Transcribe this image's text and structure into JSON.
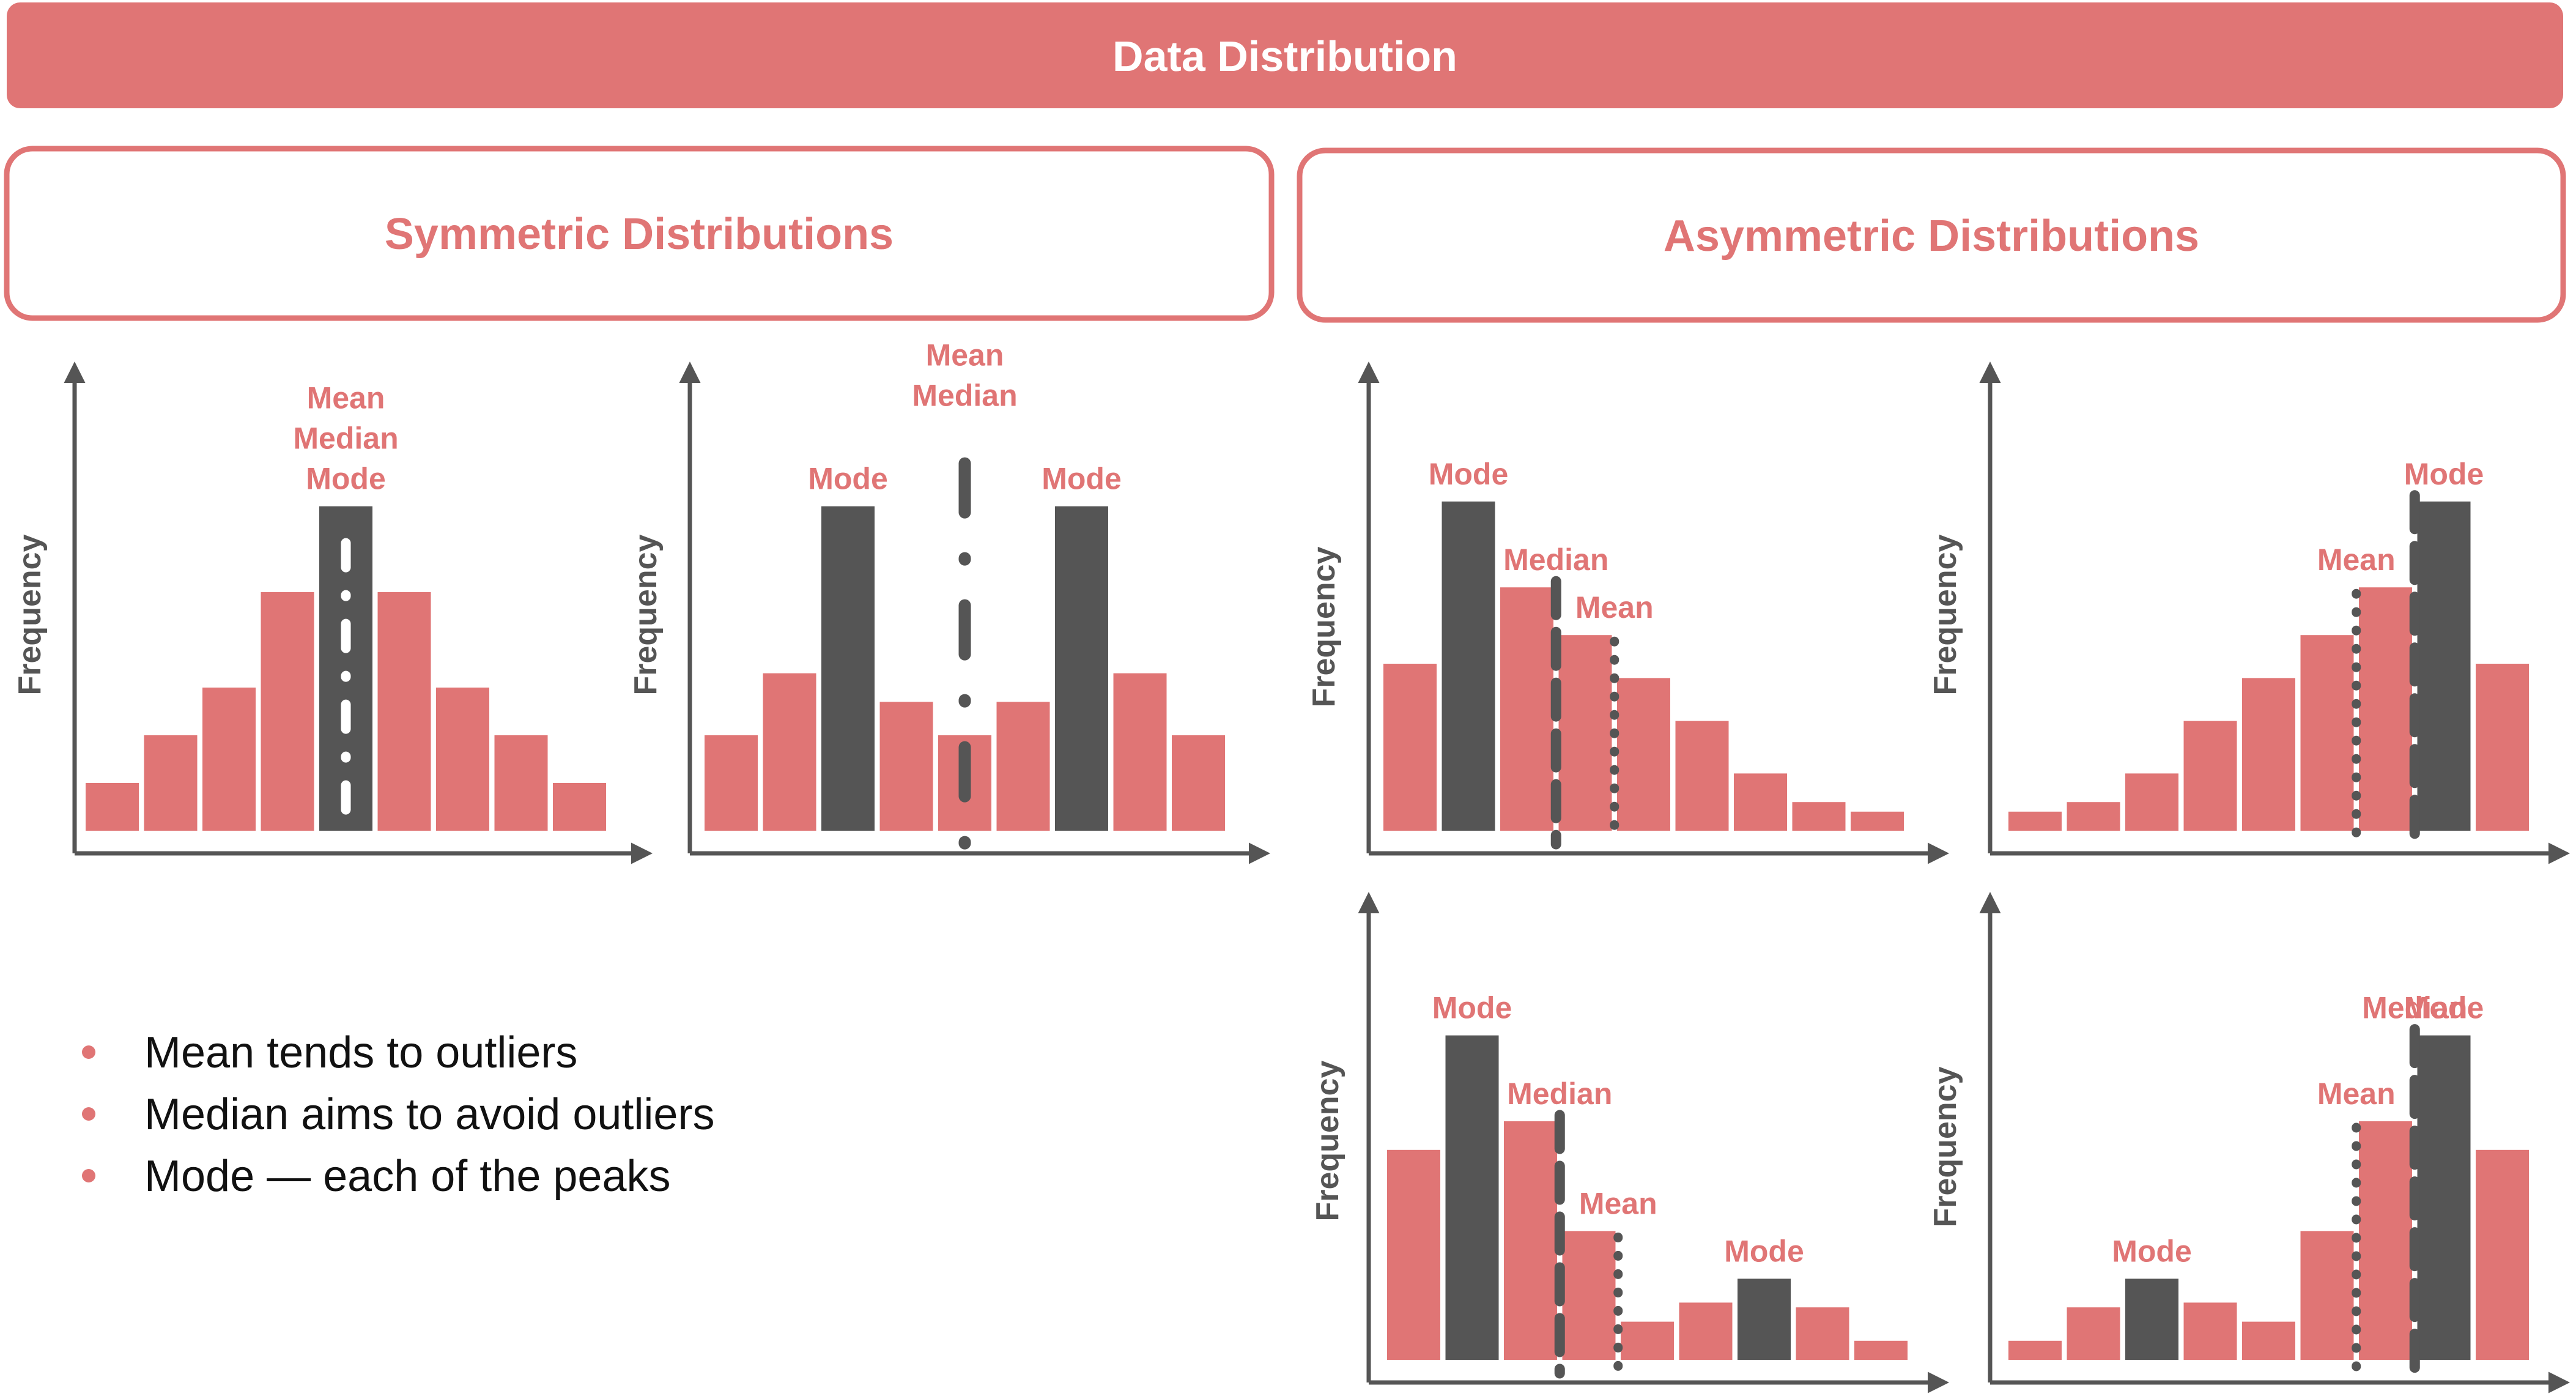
{
  "header": {
    "title": "Data Distribution"
  },
  "panels": {
    "symmetric_title": "Symmetric Distributions",
    "asymmetric_title": "Asymmetric Distributions"
  },
  "colors": {
    "accent": "#e07575",
    "dark": "#555555",
    "white": "#ffffff"
  },
  "bullets": [
    "Mean tends to outliers",
    "Median aims to avoid outliers",
    "Mode — each of the peaks"
  ],
  "chart_data": [
    {
      "type": "bar",
      "name": "symmetric-unimodal",
      "ylabel": "Frequency",
      "values": [
        1,
        2,
        3,
        5,
        6.8,
        5,
        3,
        2,
        1
      ],
      "highlight": [
        4
      ],
      "annotations": [
        {
          "text": "Mean",
          "bar": 4,
          "row": 2
        },
        {
          "text": "Median",
          "bar": 4,
          "row": 1
        },
        {
          "text": "Mode",
          "bar": 4,
          "row": 0
        }
      ],
      "lines": [
        {
          "bar": 4,
          "style": "dashdot-white",
          "overlay": true
        }
      ]
    },
    {
      "type": "bar",
      "name": "symmetric-bimodal",
      "ylabel": "Frequency",
      "values": [
        2,
        3.3,
        6.8,
        2.7,
        2,
        2.7,
        6.8,
        3.3,
        2
      ],
      "highlight": [
        2,
        6
      ],
      "annotations": [
        {
          "text": "Mode",
          "bar": 2,
          "row": 0
        },
        {
          "text": "Mode",
          "bar": 6,
          "row": 0
        },
        {
          "text": "Mean",
          "bar": 4,
          "row": 2,
          "abovePlot": true
        },
        {
          "text": "Median",
          "bar": 4,
          "row": 1,
          "abovePlot": true
        }
      ],
      "lines": [
        {
          "bar": 4,
          "style": "dashdot-dark",
          "tall": true
        }
      ]
    },
    {
      "type": "bar",
      "name": "right-skewed-unimodal",
      "ylabel": "Frequency",
      "values": [
        3.5,
        6.9,
        5.1,
        4.1,
        3.2,
        2.3,
        1.2,
        0.6,
        0.4
      ],
      "highlight": [
        1
      ],
      "annotations": [
        {
          "text": "Mode",
          "bar": 1,
          "row": 0
        },
        {
          "text": "Median",
          "bar": 2.5,
          "row": 0
        },
        {
          "text": "Mean",
          "bar": 3.5,
          "row": 0
        }
      ],
      "lines": [
        {
          "bar": 2.5,
          "style": "dashed"
        },
        {
          "bar": 3.5,
          "style": "dotted"
        }
      ]
    },
    {
      "type": "bar",
      "name": "left-skewed-unimodal",
      "ylabel": "Frequency",
      "values": [
        0.4,
        0.6,
        1.2,
        2.3,
        3.2,
        4.1,
        5.1,
        6.9,
        3.5
      ],
      "highlight": [
        7
      ],
      "annotations": [
        {
          "text": "Mode",
          "bar": 7,
          "row": 0
        },
        {
          "text": "Mean",
          "bar": 5.5,
          "row": 0
        }
      ],
      "lines": [
        {
          "bar": 5.5,
          "style": "dotted"
        },
        {
          "bar": 6.5,
          "style": "dashed"
        }
      ]
    },
    {
      "type": "bar",
      "name": "right-skewed-bimodal",
      "ylabel": "Frequency",
      "values": [
        4.4,
        6.8,
        5.0,
        2.7,
        0.8,
        1.2,
        1.7,
        1.1,
        0.4
      ],
      "highlight": [
        1,
        6
      ],
      "annotations": [
        {
          "text": "Mode",
          "bar": 1,
          "row": 0
        },
        {
          "text": "Median",
          "bar": 2.5,
          "row": 0
        },
        {
          "text": "Mean",
          "bar": 3.5,
          "row": 0
        },
        {
          "text": "Mode",
          "bar": 6,
          "row": 0
        }
      ],
      "lines": [
        {
          "bar": 2.5,
          "style": "dashed"
        },
        {
          "bar": 3.5,
          "style": "dotted"
        }
      ]
    },
    {
      "type": "bar",
      "name": "left-skewed-bimodal",
      "ylabel": "Frequency",
      "values": [
        0.4,
        1.1,
        1.7,
        1.2,
        0.8,
        2.7,
        5.0,
        6.8,
        4.4
      ],
      "highlight": [
        2,
        7
      ],
      "annotations": [
        {
          "text": "Mode",
          "bar": 2,
          "row": 0
        },
        {
          "text": "Mean",
          "bar": 5.5,
          "row": 0
        },
        {
          "text": "Median",
          "bar": 6.5,
          "row": 0
        },
        {
          "text": "Mode",
          "bar": 7,
          "row": 0
        }
      ],
      "lines": [
        {
          "bar": 5.5,
          "style": "dotted"
        },
        {
          "bar": 6.5,
          "style": "dashed"
        }
      ]
    }
  ]
}
